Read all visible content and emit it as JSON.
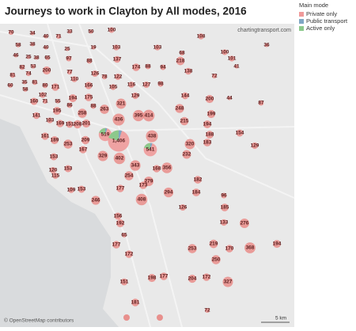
{
  "title": "Journeys to work in Clayton by All modes, 2016",
  "credit": "chartingtransport.com",
  "attribution": "© OpenStreetMap contributors",
  "scale_label": "5 km",
  "legend": {
    "title": "Main mode",
    "items": [
      {
        "name": "Private only",
        "color": "#f09a9a"
      },
      {
        "name": "Public transport",
        "color": "#7fa7c4"
      },
      {
        "name": "Active only",
        "color": "#8cc98c"
      }
    ]
  },
  "markers": [
    {
      "value": 70
    },
    {
      "value": 34
    },
    {
      "value": 40
    },
    {
      "value": 71
    },
    {
      "value": 33
    },
    {
      "value": 50
    },
    {
      "value": 100
    },
    {
      "value": 108
    },
    {
      "value": 58
    },
    {
      "value": 38
    },
    {
      "value": 40
    },
    {
      "value": 46
    },
    {
      "value": 25
    },
    {
      "value": 38
    },
    {
      "value": 65
    },
    {
      "value": 25
    },
    {
      "value": 19
    },
    {
      "value": 103
    },
    {
      "value": 103
    },
    {
      "value": 68
    },
    {
      "value": 100
    },
    {
      "value": 36
    },
    {
      "value": 82
    },
    {
      "value": 53
    },
    {
      "value": 200
    },
    {
      "value": 97
    },
    {
      "value": 88
    },
    {
      "value": 137
    },
    {
      "value": 174
    },
    {
      "value": 88
    },
    {
      "value": 94
    },
    {
      "value": 218
    },
    {
      "value": 101
    },
    {
      "value": 41
    },
    {
      "value": 81
    },
    {
      "value": 74
    },
    {
      "value": 80
    },
    {
      "value": 77
    },
    {
      "value": 110
    },
    {
      "value": 126
    },
    {
      "value": 78
    },
    {
      "value": 122
    },
    {
      "value": 116
    },
    {
      "value": 127
    },
    {
      "value": 98
    },
    {
      "value": 138
    },
    {
      "value": 72
    },
    {
      "value": 60
    },
    {
      "value": 35
    },
    {
      "value": 81
    },
    {
      "value": 171
    },
    {
      "value": 58
    },
    {
      "value": 102
    },
    {
      "value": 194
    },
    {
      "value": 166
    },
    {
      "value": 175
    },
    {
      "value": 105
    },
    {
      "value": 129
    },
    {
      "value": 144
    },
    {
      "value": 200
    },
    {
      "value": 44
    },
    {
      "value": 87
    },
    {
      "value": 160
    },
    {
      "value": 71
    },
    {
      "value": 55
    },
    {
      "value": 86
    },
    {
      "value": 88
    },
    {
      "value": 263
    },
    {
      "value": 321
    },
    {
      "value": 248
    },
    {
      "value": 199
    },
    {
      "value": 195
    },
    {
      "value": 258
    },
    {
      "value": 141
    },
    {
      "value": 103
    },
    {
      "value": 169
    },
    {
      "value": 151
    },
    {
      "value": 208
    },
    {
      "value": 201
    },
    {
      "value": 436
    },
    {
      "value": 395
    },
    {
      "value": 414
    },
    {
      "value": 215
    },
    {
      "value": 194
    },
    {
      "value": 519
    },
    {
      "value": 1406,
      "label": "1,406"
    },
    {
      "value": 438
    },
    {
      "value": 161
    },
    {
      "value": 189
    },
    {
      "value": 253
    },
    {
      "value": 209
    },
    {
      "value": 320
    },
    {
      "value": 183
    },
    {
      "value": 188
    },
    {
      "value": 154
    },
    {
      "value": 129
    },
    {
      "value": 167
    },
    {
      "value": 541
    },
    {
      "value": 232
    },
    {
      "value": 153
    },
    {
      "value": 329
    },
    {
      "value": 402
    },
    {
      "value": 153
    },
    {
      "value": 343
    },
    {
      "value": 168
    },
    {
      "value": 356
    },
    {
      "value": 120
    },
    {
      "value": 115
    },
    {
      "value": 254
    },
    {
      "value": 279
    },
    {
      "value": 182
    },
    {
      "value": 173
    },
    {
      "value": 177
    },
    {
      "value": 109
    },
    {
      "value": 153
    },
    {
      "value": 294
    },
    {
      "value": 184
    },
    {
      "value": 96
    },
    {
      "value": 246
    },
    {
      "value": 408
    },
    {
      "value": 126
    },
    {
      "value": 185
    },
    {
      "value": 156
    },
    {
      "value": 276
    },
    {
      "value": 133
    },
    {
      "value": 192
    },
    {
      "value": 65
    },
    {
      "value": 177
    },
    {
      "value": 253
    },
    {
      "value": 219
    },
    {
      "value": 170
    },
    {
      "value": 368
    },
    {
      "value": 194
    },
    {
      "value": 250
    },
    {
      "value": 172
    },
    {
      "value": 151
    },
    {
      "value": 198
    },
    {
      "value": 177
    },
    {
      "value": 204
    },
    {
      "value": 172
    },
    {
      "value": 327
    },
    {
      "value": 181
    },
    {
      "value": 72
    }
  ]
}
